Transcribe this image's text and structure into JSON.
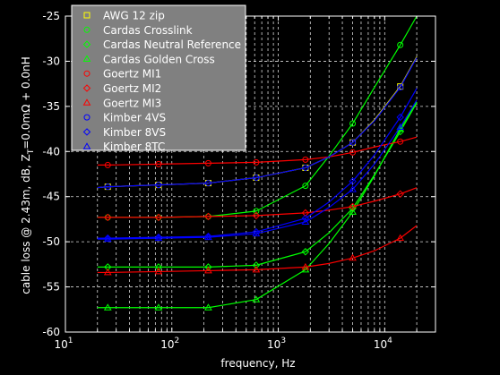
{
  "chart_data": {
    "type": "line",
    "title": "",
    "xlabel": "frequency, Hz",
    "ylabel": "cable loss @ 2.43m, dB, Z",
    "ylabel_sub": "T",
    "ylabel_tail": "=0.0mΩ + 0.0nH",
    "x_scale": "log",
    "xlim": [
      10,
      30000
    ],
    "ylim": [
      -60,
      -25
    ],
    "x_ticks": [
      10,
      100,
      1000,
      10000
    ],
    "x_tick_labels": [
      {
        "base": "10",
        "exp": "1"
      },
      {
        "base": "10",
        "exp": "2"
      },
      {
        "base": "10",
        "exp": "3"
      },
      {
        "base": "10",
        "exp": "4"
      }
    ],
    "y_ticks": [
      -60,
      -55,
      -50,
      -45,
      -40,
      -35,
      -30,
      -25
    ],
    "y_tick_labels": [
      "-60",
      "-55",
      "-50",
      "-45",
      "-40",
      "-35",
      "-30",
      "-25"
    ],
    "grid": true,
    "grid_style": "dashed",
    "legend_position": "top-left",
    "colors": {
      "background": "#000000",
      "axes_bg": "#000000",
      "axes_fg": "#ffffff",
      "grid": "#ffffff",
      "legend_bg": "#808080",
      "legend_border": "#ffffff"
    },
    "marker_x": [
      25,
      75,
      220,
      620,
      1800,
      5000,
      14000
    ],
    "series": [
      {
        "name": "AWG 12 zip",
        "color": "#ffff00",
        "marker": "square",
        "x": [
          20,
          25,
          75,
          220,
          620,
          1800,
          3000,
          5000,
          8000,
          14000,
          20000
        ],
        "y": [
          -44.0,
          -43.9,
          -43.7,
          -43.5,
          -42.9,
          -41.8,
          -40.6,
          -39.0,
          -36.5,
          -32.8,
          -29.5
        ]
      },
      {
        "name": "Cardas Crosslink",
        "color": "#00ff00",
        "marker": "circle",
        "x": [
          20,
          25,
          75,
          220,
          620,
          1800,
          3000,
          5000,
          8000,
          14000,
          20000
        ],
        "y": [
          -47.3,
          -47.3,
          -47.3,
          -47.2,
          -46.6,
          -43.8,
          -40.5,
          -36.9,
          -32.9,
          -28.2,
          -25.0
        ]
      },
      {
        "name": "Cardas Neutral Reference",
        "color": "#00ff00",
        "marker": "diamond",
        "x": [
          20,
          25,
          75,
          220,
          620,
          1800,
          3000,
          5000,
          8000,
          14000,
          20000
        ],
        "y": [
          -52.8,
          -52.8,
          -52.8,
          -52.8,
          -52.6,
          -51.1,
          -49.0,
          -46.3,
          -42.6,
          -37.8,
          -34.6
        ]
      },
      {
        "name": "Cardas Golden Cross",
        "color": "#00ff00",
        "marker": "triangle",
        "x": [
          20,
          25,
          75,
          220,
          620,
          1800,
          3000,
          5000,
          8000,
          14000,
          20000
        ],
        "y": [
          -57.3,
          -57.3,
          -57.3,
          -57.3,
          -56.4,
          -53.1,
          -50.2,
          -46.7,
          -42.7,
          -37.5,
          -34.5
        ]
      },
      {
        "name": "Goertz MI1",
        "color": "#ff0000",
        "marker": "circle",
        "x": [
          20,
          25,
          75,
          220,
          620,
          1800,
          3000,
          5000,
          8000,
          14000,
          20000
        ],
        "y": [
          -41.5,
          -41.5,
          -41.4,
          -41.3,
          -41.2,
          -40.9,
          -40.6,
          -40.1,
          -39.5,
          -38.9,
          -38.4
        ]
      },
      {
        "name": "Goertz MI2",
        "color": "#ff0000",
        "marker": "diamond",
        "x": [
          20,
          25,
          75,
          220,
          620,
          1800,
          3000,
          5000,
          8000,
          14000,
          20000
        ],
        "y": [
          -47.3,
          -47.3,
          -47.3,
          -47.2,
          -47.1,
          -46.8,
          -46.5,
          -46.1,
          -45.5,
          -44.7,
          -44.0
        ]
      },
      {
        "name": "Goertz MI3",
        "color": "#ff0000",
        "marker": "triangle",
        "x": [
          20,
          25,
          75,
          220,
          620,
          1800,
          3000,
          5000,
          8000,
          14000,
          20000
        ],
        "y": [
          -53.4,
          -53.4,
          -53.3,
          -53.2,
          -53.1,
          -52.8,
          -52.4,
          -51.8,
          -51.0,
          -49.6,
          -48.2
        ]
      },
      {
        "name": "Kimber 4VS",
        "color": "#0000ff",
        "marker": "circle",
        "x": [
          20,
          25,
          75,
          220,
          620,
          1800,
          3000,
          5000,
          8000,
          14000,
          20000
        ],
        "y": [
          -44.0,
          -43.9,
          -43.7,
          -43.5,
          -42.9,
          -41.8,
          -40.6,
          -39.0,
          -36.6,
          -32.9,
          -29.6
        ]
      },
      {
        "name": "Kimber 8VS",
        "color": "#0000ff",
        "marker": "diamond",
        "x": [
          20,
          25,
          75,
          220,
          620,
          1800,
          3000,
          5000,
          8000,
          14000,
          20000
        ],
        "y": [
          -49.6,
          -49.6,
          -49.5,
          -49.4,
          -48.9,
          -47.4,
          -45.6,
          -43.3,
          -40.4,
          -36.2,
          -33.0
        ]
      },
      {
        "name": "Kimber 8TC",
        "color": "#0000ff",
        "marker": "triangle",
        "x": [
          20,
          25,
          75,
          220,
          620,
          1800,
          3000,
          5000,
          8000,
          14000,
          20000
        ],
        "y": [
          -49.7,
          -49.7,
          -49.6,
          -49.5,
          -49.1,
          -47.8,
          -46.2,
          -44.2,
          -41.4,
          -37.3,
          -34.3
        ]
      }
    ]
  }
}
